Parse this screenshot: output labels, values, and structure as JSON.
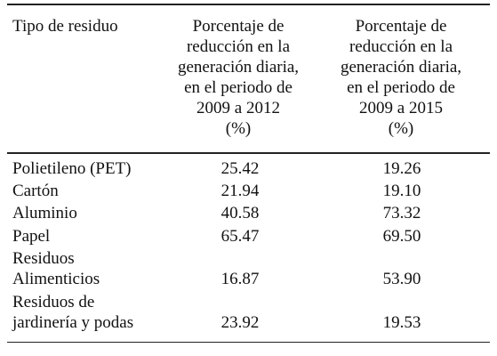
{
  "table": {
    "header": {
      "col0": "Tipo de residuo",
      "col1": [
        "Porcentaje de",
        "reducción en la",
        "generación diaria,",
        "en el periodo de",
        "2009 a 2012",
        "(%)"
      ],
      "col2": [
        "Porcentaje de",
        "reducción en la",
        "generación diaria,",
        "en el periodo de",
        "2009 a 2015",
        "(%)"
      ]
    },
    "rows": [
      {
        "label": [
          "Polietileno (PET)"
        ],
        "v2012": "25.42",
        "v2015": "19.26"
      },
      {
        "label": [
          "Cartón"
        ],
        "v2012": "21.94",
        "v2015": "19.10"
      },
      {
        "label": [
          "Aluminio"
        ],
        "v2012": "40.58",
        "v2015": "73.32"
      },
      {
        "label": [
          "Papel"
        ],
        "v2012": "65.47",
        "v2015": "69.50"
      },
      {
        "label": [
          "Residuos",
          "Alimenticios"
        ],
        "v2012": "16.87",
        "v2015": "53.90"
      },
      {
        "label": [
          "Residuos de",
          "jardinería y podas"
        ],
        "v2012": "23.92",
        "v2015": "19.53"
      }
    ]
  }
}
